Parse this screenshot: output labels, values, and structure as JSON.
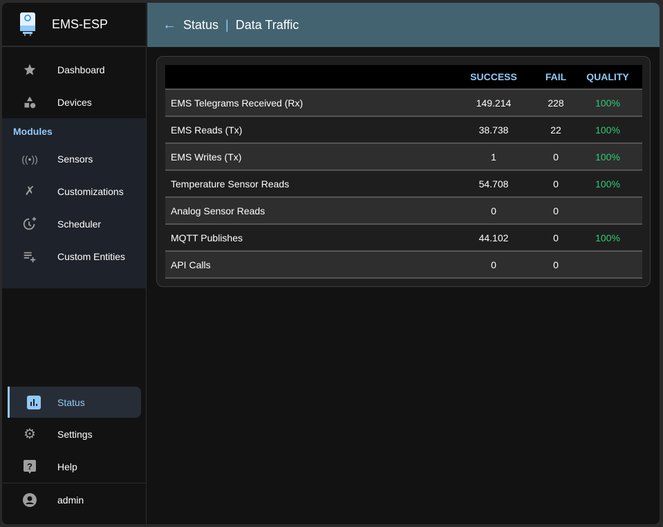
{
  "app": {
    "title": "EMS-ESP"
  },
  "header": {
    "section": "Status",
    "page": "Data Traffic"
  },
  "sidebar": {
    "top": [
      {
        "label": "Dashboard",
        "icon": "star-icon"
      },
      {
        "label": "Devices",
        "icon": "category-icon"
      }
    ],
    "modules_label": "Modules",
    "modules": [
      {
        "label": "Sensors",
        "icon": "sensors-icon"
      },
      {
        "label": "Customizations",
        "icon": "tools-icon"
      },
      {
        "label": "Scheduler",
        "icon": "more-time-icon"
      },
      {
        "label": "Custom Entities",
        "icon": "playlist-add-icon"
      }
    ],
    "bottom": [
      {
        "label": "Status",
        "icon": "bar-chart-icon",
        "active": true
      },
      {
        "label": "Settings",
        "icon": "gear-icon"
      },
      {
        "label": "Help",
        "icon": "help-icon"
      }
    ],
    "user": "admin"
  },
  "table": {
    "columns": [
      "",
      "SUCCESS",
      "FAIL",
      "QUALITY"
    ],
    "rows": [
      {
        "name": "EMS Telegrams Received (Rx)",
        "success": "149.214",
        "fail": "228",
        "quality": "100%"
      },
      {
        "name": "EMS Reads (Tx)",
        "success": "38.738",
        "fail": "22",
        "quality": "100%"
      },
      {
        "name": "EMS Writes (Tx)",
        "success": "1",
        "fail": "0",
        "quality": "100%"
      },
      {
        "name": "Temperature Sensor Reads",
        "success": "54.708",
        "fail": "0",
        "quality": "100%"
      },
      {
        "name": "Analog Sensor Reads",
        "success": "0",
        "fail": "0",
        "quality": ""
      },
      {
        "name": "MQTT Publishes",
        "success": "44.102",
        "fail": "0",
        "quality": "100%"
      },
      {
        "name": "API Calls",
        "success": "0",
        "fail": "0",
        "quality": ""
      }
    ]
  },
  "colors": {
    "accent": "#90caf9",
    "header": "#436370",
    "quality": "#2ecc71"
  }
}
